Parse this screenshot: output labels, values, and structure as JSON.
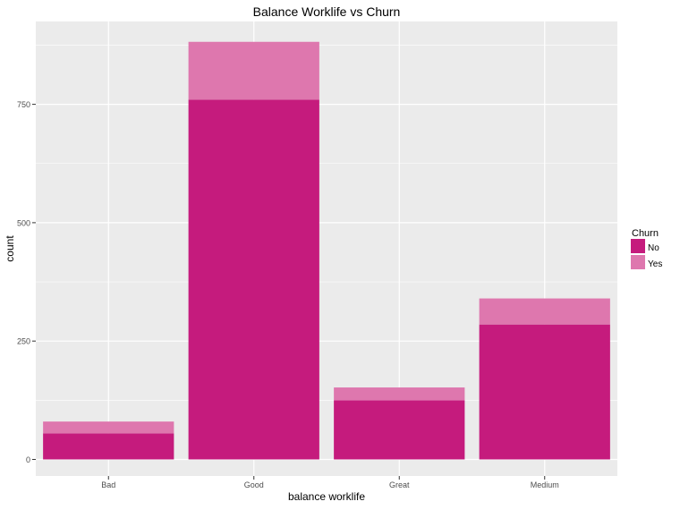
{
  "chart_data": {
    "type": "bar",
    "stacked": true,
    "title": "Balance Worklife vs Churn",
    "xlabel": "balance worklife",
    "ylabel": "count",
    "categories": [
      "Bad",
      "Good",
      "Great",
      "Medium"
    ],
    "series": [
      {
        "name": "No",
        "values": [
          55,
          760,
          125,
          285
        ],
        "color": "#c51b7d"
      },
      {
        "name": "Yes",
        "values": [
          25,
          122,
          27,
          55
        ],
        "color": "#de77ae"
      }
    ],
    "ylim": [
      -35,
      925
    ],
    "yticks": [
      0,
      250,
      500,
      750
    ],
    "ytick_labels": [
      "0",
      "250",
      "500",
      "750"
    ],
    "grid": true,
    "panel_background": "#ebebeb",
    "grid_color": "#ffffff",
    "legend": {
      "title": "Churn",
      "position": "right",
      "entries": [
        "No",
        "Yes"
      ]
    }
  }
}
